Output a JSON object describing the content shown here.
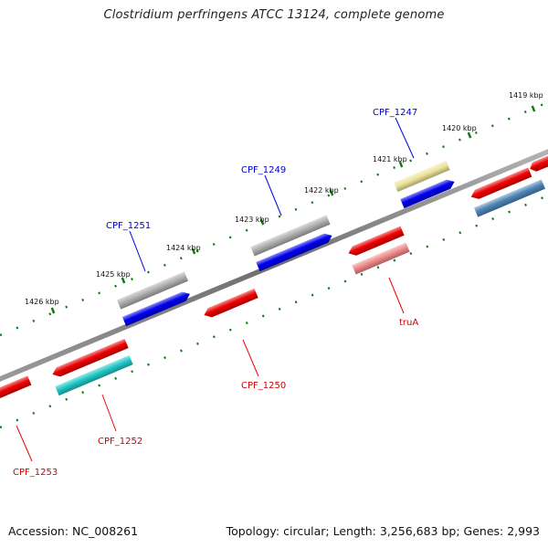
{
  "title": "Clostridium perfringens ATCC 13124, complete genome",
  "footer": {
    "accession": "Accession: NC_008261",
    "topology": "Topology: circular; Length: 3,256,683 bp; Genes: 2,993"
  },
  "colors": {
    "backbone": "#808080",
    "tick": "#0a7a0a",
    "forward_label": "#0000cc",
    "reverse_label": "#cc0000"
  },
  "scale_labels": [
    "1419 kbp",
    "1420 kbp",
    "1421 kbp",
    "1422 kbp",
    "1423 kbp",
    "1424 kbp",
    "1425 kbp",
    "1426 kbp"
  ],
  "forward_genes": [
    {
      "name": "CPF_1247",
      "label": "CPF_1247",
      "color": "#0000ee"
    },
    {
      "name": "CPF_1249",
      "label": "CPF_1249",
      "color": "#0000ee"
    },
    {
      "name": "CPF_1251",
      "label": "CPF_1251",
      "color": "#0000ee"
    }
  ],
  "forward_features": [
    {
      "color": "#ece39a"
    },
    {
      "color": "#b0b0b0"
    },
    {
      "color": "#b0b0b0"
    }
  ],
  "reverse_genes": [
    {
      "name": "truA",
      "label": "truA",
      "color": "#ee0000"
    },
    {
      "name": "CPF_1250",
      "label": "CPF_1250",
      "color": "#ee0000"
    },
    {
      "name": "CPF_1252",
      "label": "CPF_1252",
      "color": "#ee0000"
    },
    {
      "name": "CPF_1253",
      "label": "CPF_1253",
      "color": "#ee0000"
    },
    {
      "name": "unlabeled-reverse-gene",
      "label": "",
      "color": "#ee0000"
    },
    {
      "name": "unlabeled-reverse-gene",
      "label": "",
      "color": "#ee0000"
    }
  ],
  "reverse_features": [
    {
      "color": "#f08a8a"
    },
    {
      "color": "#20c8c8"
    },
    {
      "color": "#4f86b8"
    }
  ]
}
